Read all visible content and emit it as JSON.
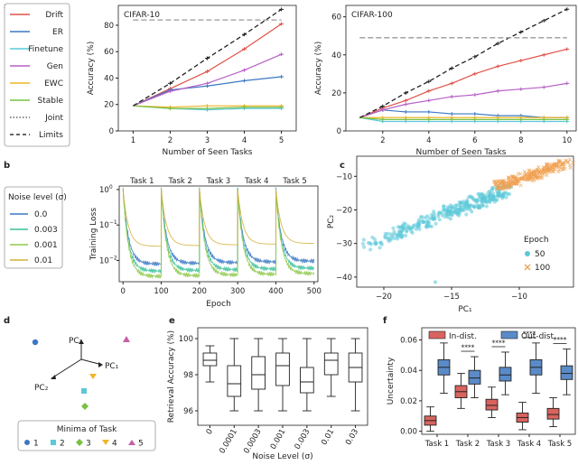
{
  "figure_title": "Continual learning benchmark figure",
  "panel_labels": {
    "a": "a",
    "b": "b",
    "c": "c",
    "d": "d",
    "e": "e",
    "f": "f"
  },
  "legend_a": [
    {
      "name": "Drift",
      "color": "#e0524a",
      "style": "solid"
    },
    {
      "name": "ER",
      "color": "#3b78c4",
      "style": "solid"
    },
    {
      "name": "Finetune",
      "color": "#5bc8d8",
      "style": "solid"
    },
    {
      "name": "Gen",
      "color": "#b760c6",
      "style": "solid"
    },
    {
      "name": "EWC",
      "color": "#f0b429",
      "style": "solid"
    },
    {
      "name": "Stable",
      "color": "#7ac043",
      "style": "solid"
    },
    {
      "name": "Joint",
      "color": "#666666",
      "style": "dotted"
    },
    {
      "name": "Limits",
      "color": "#333333",
      "style": "dashed"
    }
  ],
  "chart_data": [
    {
      "id": "a1",
      "type": "line",
      "title": "CIFAR-10",
      "xlabel": "Number of Seen Tasks",
      "ylabel": "Accuracy (%)",
      "xlim": [
        0.6,
        5.4
      ],
      "ylim": [
        0,
        95
      ],
      "xticks": [
        1,
        2,
        3,
        4,
        5
      ],
      "yticks": [
        0,
        20,
        40,
        60,
        80
      ],
      "x": [
        1,
        2,
        3,
        4,
        5
      ],
      "series": [
        {
          "name": "Drift",
          "color": "#e0524a",
          "values": [
            19,
            32,
            45,
            62,
            81
          ]
        },
        {
          "name": "ER",
          "color": "#3b78c4",
          "values": [
            19,
            31,
            34,
            38,
            41
          ]
        },
        {
          "name": "Finetune",
          "color": "#5bc8d8",
          "values": [
            19,
            17,
            16,
            17,
            17
          ]
        },
        {
          "name": "Gen",
          "color": "#b760c6",
          "values": [
            19,
            30,
            36,
            46,
            58
          ]
        },
        {
          "name": "EWC",
          "color": "#f0b429",
          "values": [
            19,
            18,
            19,
            19,
            19
          ]
        },
        {
          "name": "Stable",
          "color": "#7ac043",
          "values": [
            19,
            17,
            17,
            18,
            18
          ]
        },
        {
          "name": "Joint",
          "color": "#222222",
          "dash": "5,3",
          "values": [
            19,
            36,
            55,
            73,
            92
          ]
        },
        {
          "name": "Limits",
          "color": "#999999",
          "dash": "6,3",
          "values": [
            84,
            84,
            84,
            84,
            84
          ]
        }
      ]
    },
    {
      "id": "a2",
      "type": "line",
      "title": "CIFAR-100",
      "xlabel": "Number of Seen Tasks",
      "ylabel": "Accuracy (%)",
      "xlim": [
        0.4,
        10.4
      ],
      "ylim": [
        0,
        66
      ],
      "xticks": [
        2,
        4,
        6,
        8,
        10
      ],
      "yticks": [
        0,
        20,
        40,
        60
      ],
      "x": [
        1,
        2,
        3,
        4,
        5,
        6,
        7,
        8,
        9,
        10
      ],
      "series": [
        {
          "name": "Drift",
          "color": "#e0524a",
          "values": [
            7,
            12,
            16,
            21,
            25,
            30,
            34,
            37,
            40,
            43
          ]
        },
        {
          "name": "ER",
          "color": "#3b78c4",
          "values": [
            7,
            11,
            10,
            10,
            9,
            9,
            8,
            8,
            7,
            7
          ]
        },
        {
          "name": "Finetune",
          "color": "#5bc8d8",
          "values": [
            7,
            5,
            5,
            5,
            5,
            5,
            5,
            5,
            5,
            5
          ]
        },
        {
          "name": "Gen",
          "color": "#b760c6",
          "values": [
            7,
            11,
            14,
            16,
            18,
            19,
            21,
            22,
            23,
            25
          ]
        },
        {
          "name": "EWC",
          "color": "#f0b429",
          "values": [
            7,
            7,
            7,
            7,
            7,
            7,
            7,
            7,
            7,
            7
          ]
        },
        {
          "name": "Stable",
          "color": "#7ac043",
          "values": [
            7,
            6,
            6,
            6,
            6,
            6,
            6,
            6,
            6,
            6
          ]
        },
        {
          "name": "Joint",
          "color": "#222222",
          "dash": "5,3",
          "values": [
            7,
            13,
            20,
            26,
            33,
            39,
            46,
            52,
            58,
            64
          ]
        },
        {
          "name": "Limits",
          "color": "#999999",
          "dash": "6,3",
          "values": [
            49,
            49,
            49,
            49,
            49,
            49,
            49,
            49,
            49,
            49
          ]
        }
      ]
    },
    {
      "id": "b",
      "type": "line",
      "xlabel": "Epoch",
      "ylabel": "Training Loss",
      "xticks": [
        0,
        100,
        200,
        300,
        400,
        500
      ],
      "ytick_labels": [
        "10^0",
        "10^-1",
        "10^-2"
      ],
      "task_labels": [
        "Task 1",
        "Task 2",
        "Task 3",
        "Task 4",
        "Task 5"
      ],
      "legend_title": "Noise level (σ)",
      "series": [
        {
          "name": "0.0",
          "color": "#3b78c4"
        },
        {
          "name": "0.003",
          "color": "#3cc19b"
        },
        {
          "name": "0.001",
          "color": "#8fc94a"
        },
        {
          "name": "0.01",
          "color": "#d4b23c"
        }
      ]
    },
    {
      "id": "c",
      "type": "scatter",
      "xlabel": "PC₁",
      "ylabel": "PC₂",
      "xlim": [
        -22,
        -6
      ],
      "ylim": [
        -43,
        -4
      ],
      "xticks": [
        -20,
        -15,
        -10
      ],
      "yticks": [
        -10,
        -20,
        -30,
        -40
      ],
      "legend_title": "Epoch",
      "series": [
        {
          "name": "50",
          "color": "#5bc8d8",
          "marker": "circle"
        },
        {
          "name": "100",
          "color": "#f0a050",
          "marker": "x"
        }
      ]
    },
    {
      "id": "d",
      "type": "scatter",
      "axis_labels": [
        "PC₃",
        "PC₂",
        "PC₁"
      ],
      "legend_title": "Minima of Task",
      "points": [
        {
          "name": "1",
          "color": "#3b78c4",
          "marker": "circle"
        },
        {
          "name": "2",
          "color": "#5bc8d8",
          "marker": "square"
        },
        {
          "name": "3",
          "color": "#7ac043",
          "marker": "diamond"
        },
        {
          "name": "4",
          "color": "#f0b429",
          "marker": "triangle-down"
        },
        {
          "name": "5",
          "color": "#c95fa8",
          "marker": "triangle-up"
        }
      ]
    },
    {
      "id": "e",
      "type": "box",
      "xlabel": "Noise Level (σ)",
      "ylabel": "Retrieval Accuracy (%)",
      "ylim": [
        95.2,
        100.6
      ],
      "yticks": [
        96,
        98,
        100
      ],
      "categories": [
        "0",
        "0.0001",
        "0.0003",
        "0.001",
        "0.003",
        "0.01",
        "0.03"
      ],
      "boxes": [
        {
          "min": 97.6,
          "q1": 98.5,
          "median": 98.8,
          "q3": 99.2,
          "max": 99.6
        },
        {
          "min": 96.0,
          "q1": 96.8,
          "median": 97.5,
          "q3": 98.5,
          "max": 100.0
        },
        {
          "min": 96.0,
          "q1": 97.2,
          "median": 98.0,
          "q3": 99.0,
          "max": 100.0
        },
        {
          "min": 96.0,
          "q1": 97.4,
          "median": 98.5,
          "q3": 99.2,
          "max": 100.0
        },
        {
          "min": 96.0,
          "q1": 97.0,
          "median": 97.6,
          "q3": 98.4,
          "max": 100.0
        },
        {
          "min": 96.8,
          "q1": 98.0,
          "median": 98.8,
          "q3": 99.2,
          "max": 100.0
        },
        {
          "min": 96.0,
          "q1": 97.6,
          "median": 98.4,
          "q3": 99.2,
          "max": 100.0
        }
      ]
    },
    {
      "id": "f",
      "type": "box",
      "ylabel": "Uncertainty",
      "ylim": [
        -0.002,
        0.068
      ],
      "yticks": [
        0.0,
        0.02,
        0.04,
        0.06
      ],
      "categories": [
        "Task 1",
        "Task 2",
        "Task 3",
        "Task 4",
        "Task 5"
      ],
      "significance": "****",
      "series": [
        {
          "name": "In-dist.",
          "color": "#d9645f",
          "boxes": [
            {
              "min": 0.0,
              "q1": 0.004,
              "median": 0.007,
              "q3": 0.01,
              "max": 0.016
            },
            {
              "min": 0.015,
              "q1": 0.022,
              "median": 0.026,
              "q3": 0.03,
              "max": 0.038
            },
            {
              "min": 0.009,
              "q1": 0.014,
              "median": 0.017,
              "q3": 0.021,
              "max": 0.029
            },
            {
              "min": 0.001,
              "q1": 0.006,
              "median": 0.009,
              "q3": 0.012,
              "max": 0.019
            },
            {
              "min": 0.003,
              "q1": 0.008,
              "median": 0.011,
              "q3": 0.015,
              "max": 0.022
            }
          ]
        },
        {
          "name": "Out-dist.",
          "color": "#5a8bc8",
          "boxes": [
            {
              "min": 0.025,
              "q1": 0.037,
              "median": 0.042,
              "q3": 0.047,
              "max": 0.058
            },
            {
              "min": 0.022,
              "q1": 0.031,
              "median": 0.035,
              "q3": 0.04,
              "max": 0.049
            },
            {
              "min": 0.024,
              "q1": 0.033,
              "median": 0.037,
              "q3": 0.042,
              "max": 0.052
            },
            {
              "min": 0.025,
              "q1": 0.037,
              "median": 0.042,
              "q3": 0.047,
              "max": 0.058
            },
            {
              "min": 0.024,
              "q1": 0.034,
              "median": 0.038,
              "q3": 0.043,
              "max": 0.054
            }
          ]
        }
      ]
    }
  ]
}
